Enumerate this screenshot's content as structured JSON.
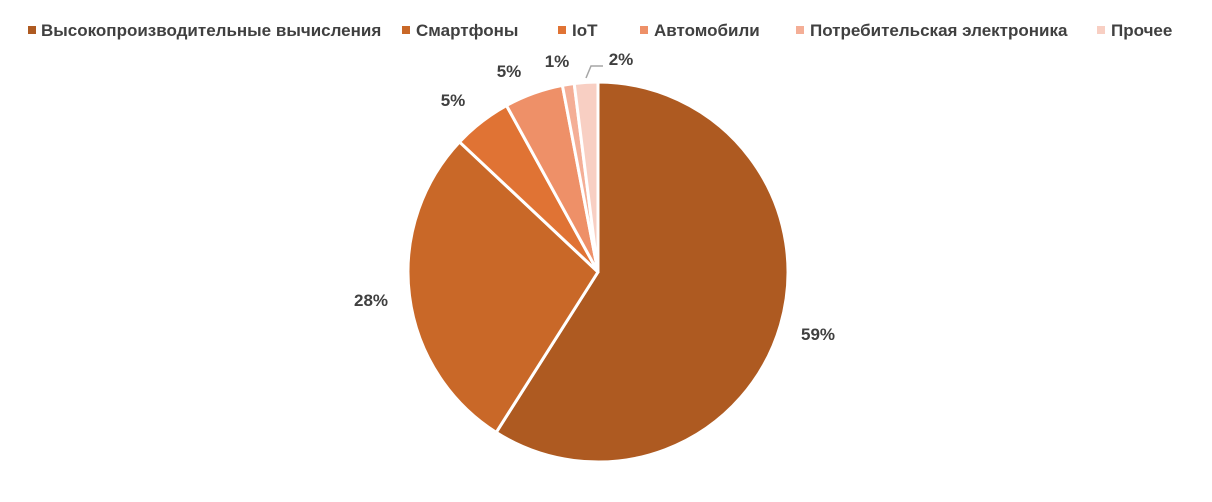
{
  "chart_data": {
    "type": "pie",
    "categories": [
      "Высокопроизводительные вычисления",
      "Смартфоны",
      "IoT",
      "Автомобили",
      "Потребительская электроника",
      "Прочее"
    ],
    "values": [
      59,
      28,
      5,
      5,
      1,
      2
    ],
    "data_labels": [
      "59%",
      "28%",
      "5%",
      "5%",
      "1%",
      "2%"
    ],
    "colors": [
      "#AE5A21",
      "#C96828",
      "#E07334",
      "#EE9068",
      "#F4AE96",
      "#F8CFC3"
    ],
    "legend_position": "top",
    "start_angle": "12 o'clock",
    "direction": "clockwise",
    "title": ""
  }
}
